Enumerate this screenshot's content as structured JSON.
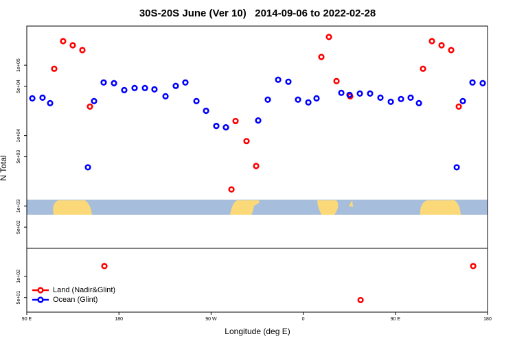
{
  "chart_data": {
    "type": "scatter",
    "title": "30S-20S June (Ver 10)   2014-09-06 to 2022-02-28",
    "x_label": "Longitude (deg E)",
    "y_label": "N Total",
    "ylog": true,
    "legend": "bottom-left",
    "xlim": [
      90,
      540
    ],
    "ylim": [
      31,
      360000
    ],
    "xticks": [
      {
        "value": 90,
        "label": "90 E"
      },
      {
        "value": 180,
        "label": "180"
      },
      {
        "value": 270,
        "label": "90 W"
      },
      {
        "value": 360,
        "label": "0"
      },
      {
        "value": 450,
        "label": "90 E"
      },
      {
        "value": 540,
        "label": "180"
      }
    ],
    "yticks": [
      {
        "value": 50,
        "label": "5e+01"
      },
      {
        "value": 100,
        "label": "1e+02"
      },
      {
        "value": 500,
        "label": "5e+02"
      },
      {
        "value": 1000,
        "label": "1e+03"
      },
      {
        "value": 5000,
        "label": "5e+03"
      },
      {
        "value": 10000,
        "label": "1e+04"
      },
      {
        "value": 50000,
        "label": "5e+04"
      },
      {
        "value": 100000,
        "label": "1e+05"
      }
    ],
    "series": [
      {
        "name": "Land (Nadir&Glint)",
        "color": "#ff0000",
        "x": [
          116.8,
          125.5,
          134.9,
          144.3,
          151.7,
          165.8,
          289.9,
          293.9,
          304.6,
          314,
          377.7,
          385.1,
          392.5,
          405.9,
          416,
          477,
          485.7,
          495.1,
          504.5,
          511.9,
          526
        ],
        "values": [
          89000,
          220000,
          192000,
          164000,
          25800,
          140,
          1720,
          16100,
          8350,
          3700,
          131000,
          252000,
          59500,
          36200,
          46,
          89000,
          220000,
          192000,
          164000,
          25800,
          140
        ]
      },
      {
        "name": "Ocean (Glint)",
        "color": "#0000ff",
        "x": [
          95.4,
          105.4,
          112.8,
          149.7,
          155.7,
          165.1,
          175.2,
          185.2,
          195.3,
          205.4,
          214.7,
          225.5,
          235.5,
          244.9,
          255.7,
          265.1,
          275.1,
          284.5,
          316,
          325.4,
          335.5,
          345.5,
          354.9,
          365,
          373,
          397.2,
          405.2,
          415.3,
          425.3,
          435.4,
          445.5,
          455.5,
          464.9,
          473,
          509.9,
          515.9,
          525.3,
          535.3
        ],
        "values": [
          33800,
          34600,
          28900,
          3540,
          30900,
          56900,
          55600,
          44300,
          47400,
          47400,
          45400,
          36200,
          50800,
          56900,
          30900,
          22500,
          13700,
          13100,
          16400,
          32400,
          62200,
          58200,
          32400,
          29600,
          33800,
          40500,
          37900,
          39600,
          39600,
          34600,
          30200,
          33100,
          34600,
          28900,
          3540,
          30900,
          56900,
          55600
        ]
      }
    ]
  }
}
